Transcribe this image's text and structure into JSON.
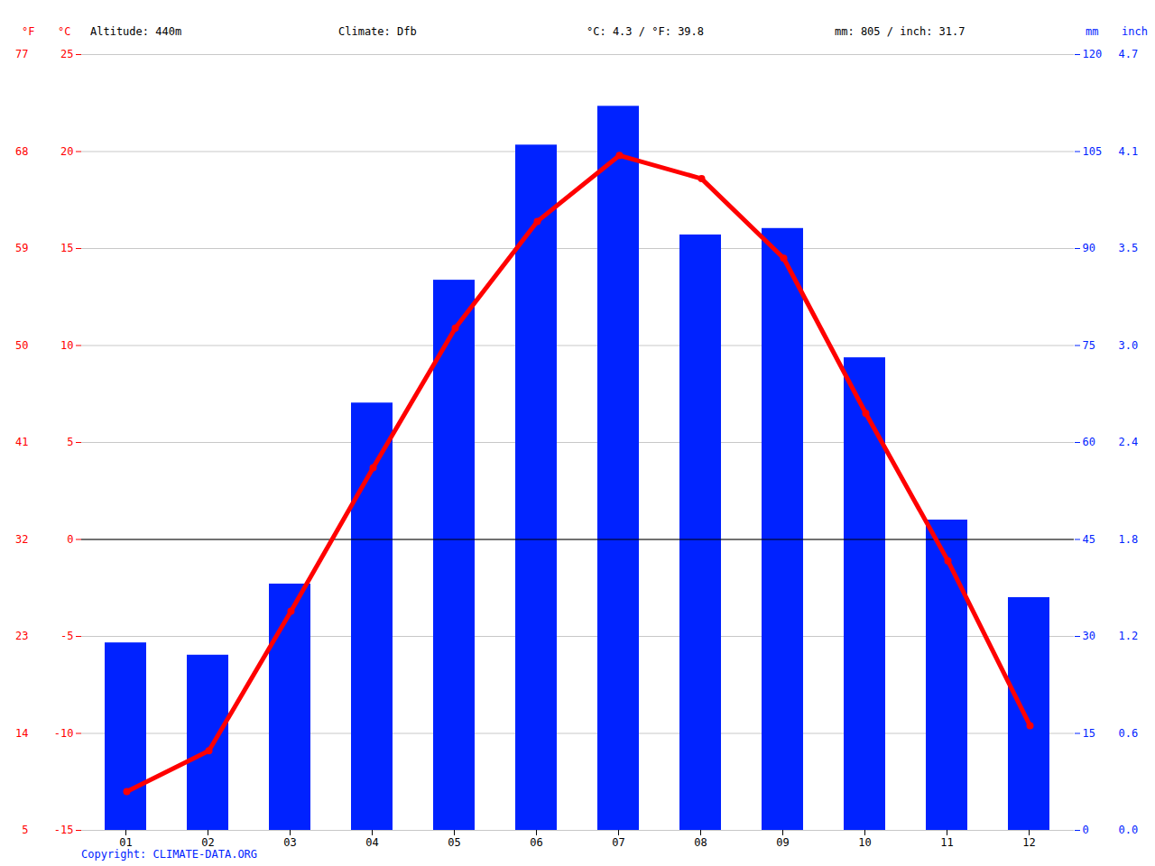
{
  "chart_data": {
    "type": "bar",
    "annotations": [
      "Altitude: 440m",
      "Climate: Dfb",
      "°C: 4.3 / °F: 39.8",
      "mm: 805 / inch: 31.7"
    ],
    "source": "Copyright: CLIMATE-DATA.ORG",
    "categories": [
      "01",
      "02",
      "03",
      "04",
      "05",
      "06",
      "07",
      "08",
      "09",
      "10",
      "11",
      "12"
    ],
    "series": [
      {
        "type": "bar",
        "axis": "y2",
        "color": "#0022ff",
        "values": [
          29.0,
          27.1,
          38.1,
          66.1,
          85.1,
          106.0,
          112.0,
          92.1,
          93.1,
          73.1,
          48.0,
          36.0
        ]
      },
      {
        "type": "line",
        "color": "#ff0000",
        "marker": "circle",
        "values": [
          -13.0,
          -10.9,
          -3.7,
          3.7,
          10.9,
          16.4,
          19.8,
          18.6,
          14.5,
          6.5,
          -1.1,
          -9.6
        ]
      }
    ],
    "ylabel": "°C",
    "y_alt_label": "°F",
    "ylim": [
      -15,
      25
    ],
    "yticks": [
      -15,
      -10,
      -5,
      0,
      5,
      10,
      15,
      20,
      25
    ],
    "y_alt_ticks": [
      {
        "value": -15,
        "label": "5"
      },
      {
        "value": -10,
        "label": "14"
      },
      {
        "value": -5,
        "label": "23"
      },
      {
        "value": 0,
        "label": "32"
      },
      {
        "value": 5,
        "label": "41"
      },
      {
        "value": 10,
        "label": "50"
      },
      {
        "value": 15,
        "label": "59"
      },
      {
        "value": 20,
        "label": "68"
      },
      {
        "value": 25,
        "label": "77"
      }
    ],
    "y2label": "mm",
    "y2_alt_label": "inch",
    "y2lim": [
      0,
      120
    ],
    "y2ticks": [
      0,
      15,
      30,
      45,
      60,
      75,
      90,
      105,
      120
    ],
    "y2_alt_ticks": [
      {
        "value": 0,
        "label": "0.0"
      },
      {
        "value": 15,
        "label": "0.6"
      },
      {
        "value": 30,
        "label": "1.2"
      },
      {
        "value": 45,
        "label": "1.8"
      },
      {
        "value": 60,
        "label": "2.4"
      },
      {
        "value": 75,
        "label": "3.0"
      },
      {
        "value": 90,
        "label": "3.5"
      },
      {
        "value": 105,
        "label": "4.1"
      },
      {
        "value": 120,
        "label": "4.7"
      }
    ],
    "grid": true
  }
}
